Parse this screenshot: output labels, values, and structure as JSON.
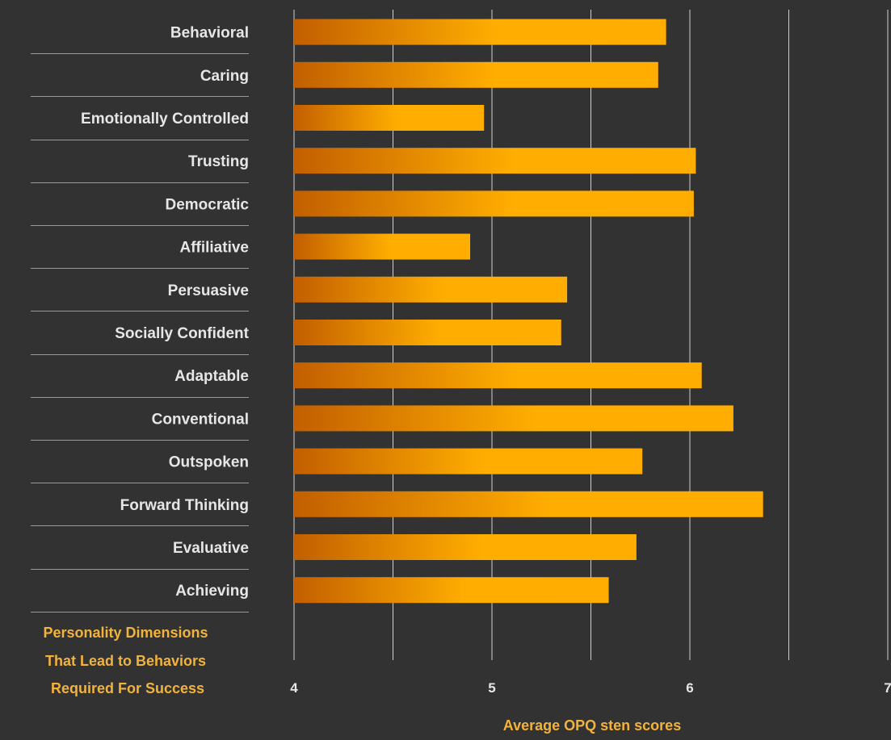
{
  "chart_data": {
    "type": "bar",
    "orientation": "horizontal",
    "categories": [
      "Behavioral",
      "Caring",
      "Emotionally Controlled",
      "Trusting",
      "Democratic",
      "Affiliative",
      "Persuasive",
      "Socially Confident",
      "Adaptable",
      "Conventional",
      "Outspoken",
      "Forward Thinking",
      "Evaluative",
      "Achieving"
    ],
    "values": [
      5.88,
      5.84,
      4.96,
      6.03,
      6.02,
      4.89,
      5.38,
      5.35,
      6.06,
      6.22,
      5.76,
      6.37,
      5.73,
      5.59
    ],
    "xlabel": "Average OPQ sten scores",
    "xlim": [
      4,
      7
    ],
    "xticks": [
      4,
      5,
      6,
      7
    ],
    "grid": true,
    "category_title_lines": [
      "Personality Dimensions",
      "That Lead to Behaviors",
      "Required For Success"
    ],
    "colors": {
      "background": "#323232",
      "bar_start": "#c25f00",
      "bar_mid": "#ffae00",
      "bar_end": "#ffad00",
      "accent_text": "#f2b33d",
      "label_text": "#e6e6e6",
      "gridline": "#d0d0d0",
      "separator": "#9a9a9a"
    }
  }
}
